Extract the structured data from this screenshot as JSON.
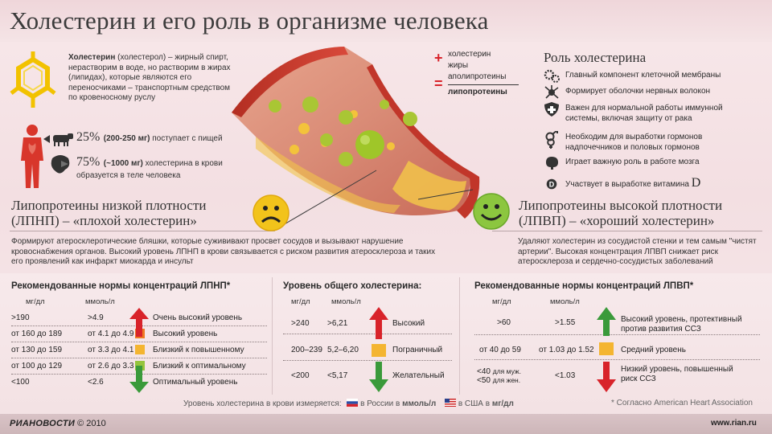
{
  "header": {
    "title": "Холестерин и его роль в организме человека"
  },
  "intro": {
    "term": "Холестерин",
    "definition": " (холестерол) – жирный спирт, нерастворим в воде, но растворим в жирах (липидах), которые являются его переносчиками – транспортным средством по кровеносному руслу",
    "food_pct": "25%",
    "food_note": "(200-250 мг)",
    "food_text": " поступает с пищей",
    "body_pct": "75%",
    "body_note": "(~1000 мг)",
    "body_text": " холестерина в крови образуется в теле человека"
  },
  "formula": {
    "a": "холестерин",
    "plus": "+",
    "b": "жиры",
    "c": "аполипротеины",
    "eq": "=",
    "result": "липопротеины"
  },
  "ldl": {
    "heading1": "Липопротеины низкой плотности",
    "heading2": "(ЛПНП) – «плохой холестерин»",
    "desc": "Формируют атеросклеротические бляшки, которые сужививают просвет сосудов и вызывают нарушение кровоснабжения органов. Высокий уровень ЛПНП в крови связывается с риском развития атеросклероза и таких его проявлений как инфаркт миокарда и инсульт"
  },
  "hdl": {
    "heading1": "Липопротеины высокой плотности",
    "heading2": "(ЛПВП) – «хороший холестерин»",
    "desc": "Удаляют холестерин из сосудистой стенки и тем самым \"чистят артерии\". Высокая концентрация ЛПВП снижает риск атеросклероза и сердечно-сосудистых заболеваний"
  },
  "roles": {
    "title": "Роль холестерина",
    "items": [
      {
        "icon": "cells-icon",
        "text": "Главный компонент клеточной мембраны"
      },
      {
        "icon": "neuron-icon",
        "text": "Формирует оболочки нервных волокон"
      },
      {
        "icon": "shield-icon",
        "text": "Важен для нормальной работы иммунной системы, включая защиту от рака"
      },
      {
        "icon": "gender-icon",
        "text": "Необходим для выработки гормонов надпочечников и половых гормонов"
      },
      {
        "icon": "brain-icon",
        "text": "Играет важную роль в работе мозга"
      },
      {
        "icon": "sun-icon",
        "text": "Участвует в выработке витамина",
        "extra": "D"
      }
    ]
  },
  "ldl_table": {
    "title": "Рекомендованные нормы концентраций ЛПНП*",
    "col1": "мг/дл",
    "col2": "ммоль/л",
    "rows": [
      {
        "mg": ">190",
        "mmol": ">4.9",
        "label": "Очень высокий уровень",
        "color": "#e2402c"
      },
      {
        "mg": "от 160 до 189",
        "mmol": "от 4.1 до 4.9",
        "label": "Высокий уровень",
        "color": "#ef7a22"
      },
      {
        "mg": "от 130 до 159",
        "mmol": "от 3.3 до 4.1",
        "label": "Близкий к повышенному",
        "color": "#f4b531"
      },
      {
        "mg": "от 100 до 129",
        "mmol": "от 2.6 до 3.3",
        "label": "Близкий к оптимальному",
        "color": "#95c43c"
      },
      {
        "mg": "<100",
        "mmol": "<2.6",
        "label": "Оптимальный уровень",
        "color": "#3c9d3a"
      }
    ]
  },
  "total_table": {
    "title": "Уровень общего холестерина:",
    "col1": "мг/дл",
    "col2": "ммоль/л",
    "rows": [
      {
        "mg": ">240",
        "mmol": ">6,21",
        "label": "Высокий"
      },
      {
        "mg": "200–239",
        "mmol": "5,2–6,20",
        "label": "Пограничный"
      },
      {
        "mg": "<200",
        "mmol": "<5,17",
        "label": "Желательный"
      }
    ]
  },
  "hdl_table": {
    "title": "Рекомендованные нормы концентраций ЛПВП*",
    "col1": "мг/дл",
    "col2": "ммоль/л",
    "rows": [
      {
        "mg": ">60",
        "mmol": ">1.55",
        "label1": "Высокий уровень, протективный",
        "label2": "против развития ССЗ"
      },
      {
        "mg": "от 40 до 59",
        "mmol": "от 1.03 до 1.52",
        "label1": "Средний уровень",
        "label2": ""
      },
      {
        "mg": "<40",
        "mg_note1": "для муж.",
        "mg2": "<50",
        "mg_note2": "для жен.",
        "mmol": "<1.03",
        "label1": "Низкий уровень, повышенный",
        "label2": "риск ССЗ"
      }
    ]
  },
  "measure_note": {
    "lead": "Уровень холестерина в крови измеряется:",
    "ru": "в России в ",
    "ru_unit": "ммоль/л",
    "us": "в США в ",
    "us_unit": "мг/дл",
    "source": "* Согласно American Heart Association"
  },
  "footer": {
    "brand": "РИАНОВОСТИ",
    "year": "© 2010",
    "url": "www.rian.ru"
  },
  "colors": {
    "up_arrow": "#d8232a",
    "down_arrow": "#3a9a3a",
    "sad_face": "#f2c31b",
    "happy_face": "#8cc63f"
  }
}
